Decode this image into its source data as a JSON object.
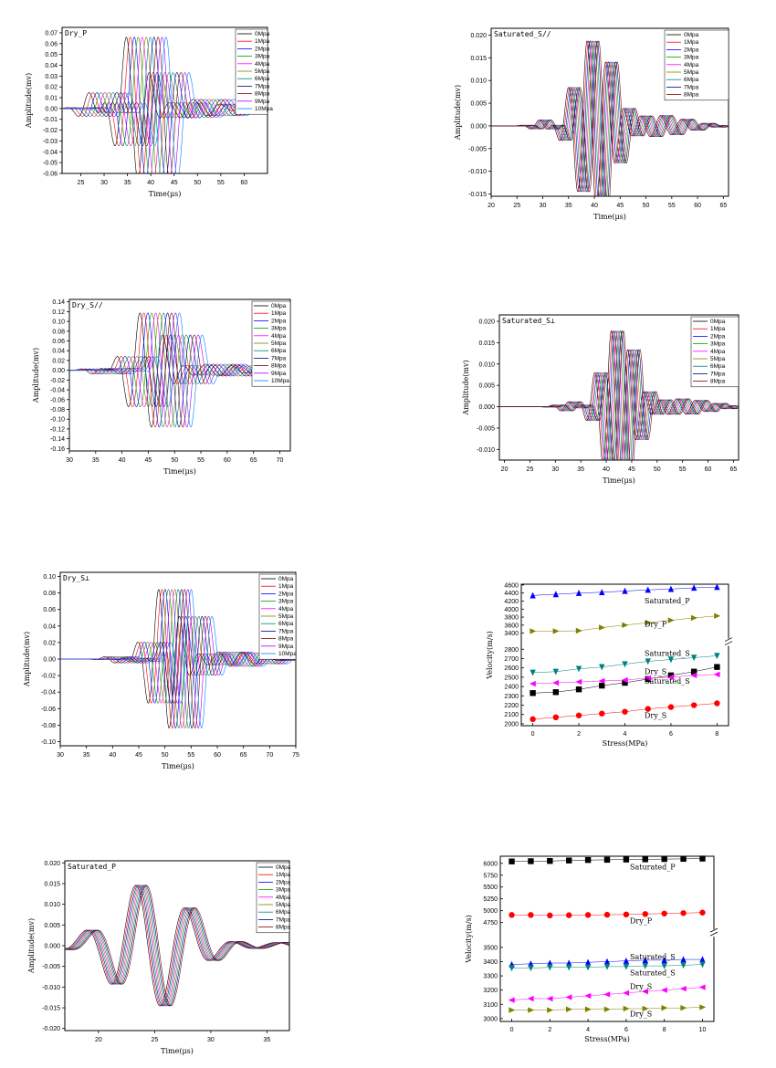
{
  "chart_data": [
    {
      "id": "dry_p",
      "type": "line",
      "title": "Dry_P",
      "xlabel": "Time(μs)",
      "ylabel": "Amplitude(mv)",
      "xlim": [
        21,
        65
      ],
      "ylim": [
        -0.06,
        0.075
      ],
      "xticks": [
        "25",
        "30",
        "35",
        "40",
        "45",
        "50",
        "55",
        "60"
      ],
      "yticks": [
        "-0.06",
        "-0.05",
        "-0.04",
        "-0.03",
        "-0.02",
        "-0.01",
        "0.00",
        "0.01",
        "0.02",
        "0.03",
        "0.04",
        "0.05",
        "0.06",
        "0.07"
      ],
      "legend": [
        "0Mpa",
        "1Mpa",
        "2Mpa",
        "3Mpa",
        "4Mpa",
        "5Mpa",
        "6Mpa",
        "7Mpa",
        "8Mpa",
        "9Mpa",
        "10Mpa"
      ],
      "wave": {
        "t0": 36.0,
        "shift": 0.85,
        "amp": 0.072,
        "f": 0.19,
        "w": 3.2,
        "pre": 0.22,
        "tail": 0.12
      }
    },
    {
      "id": "sat_s_par",
      "type": "line",
      "title": "Saturated_S//",
      "xlabel": "Time(μs)",
      "ylabel": "Amplitude(mv)",
      "xlim": [
        20,
        66
      ],
      "ylim": [
        -0.0155,
        0.0215
      ],
      "xticks": [
        "20",
        "25",
        "30",
        "35",
        "40",
        "45",
        "50",
        "55",
        "60",
        "65"
      ],
      "yticks": [
        "-0.015",
        "-0.010",
        "-0.005",
        "0.000",
        "0.005",
        "0.010",
        "0.015",
        "0.020"
      ],
      "legend": [
        "0Mpa",
        "1Mpa",
        "2Mpa",
        "3Mpa",
        "4Mpa",
        "5Mpa",
        "6Mpa",
        "7Mpa",
        "8Mpa"
      ],
      "wave": {
        "t0": 39.5,
        "shift": 0.28,
        "amp": 0.0195,
        "f": 0.27,
        "w": 3.6,
        "pre": 0.1,
        "tail": 0.12
      }
    },
    {
      "id": "dry_s_par",
      "type": "line",
      "title": "Dry_S//",
      "xlabel": "Time(μs)",
      "ylabel": "Amplitude(mv)",
      "xlim": [
        30,
        72
      ],
      "ylim": [
        -0.165,
        0.145
      ],
      "xticks": [
        "30",
        "35",
        "40",
        "45",
        "50",
        "55",
        "60",
        "65",
        "70"
      ],
      "yticks": [
        "-0.16",
        "-0.14",
        "-0.12",
        "-0.10",
        "-0.08",
        "-0.06",
        "-0.04",
        "-0.02",
        "0.00",
        "0.02",
        "0.04",
        "0.06",
        "0.08",
        "0.10",
        "0.12",
        "0.14"
      ],
      "legend": [
        "0Mpa",
        "1Mpa",
        "2Mpa",
        "3Mpa",
        "4Mpa",
        "5Mpa",
        "6Mpa",
        "7Mpa",
        "8Mpa",
        "9Mpa",
        "10Mpa"
      ],
      "wave": {
        "t0": 44.5,
        "shift": 0.75,
        "amp": 0.125,
        "f": 0.22,
        "w": 3.3,
        "pre": 0.08,
        "tail": 0.1
      }
    },
    {
      "id": "sat_s_perp",
      "type": "line",
      "title": "Saturated_S⊥",
      "xlabel": "Time(μs)",
      "ylabel": "Amplitude(mv)",
      "xlim": [
        19,
        66
      ],
      "ylim": [
        -0.0125,
        0.0215
      ],
      "xticks": [
        "20",
        "25",
        "30",
        "35",
        "40",
        "45",
        "50",
        "55",
        "60",
        "65"
      ],
      "yticks": [
        "-0.010",
        "-0.005",
        "0.000",
        "0.005",
        "0.010",
        "0.015",
        "0.020"
      ],
      "legend": [
        "0Mpa",
        "1Mpa",
        "2Mpa",
        "3Mpa",
        "4Mpa",
        "5Mpa",
        "6Mpa",
        "7Mpa",
        "8Mpa"
      ],
      "wave": {
        "t0": 41.8,
        "shift": 0.3,
        "amp": 0.0185,
        "f": 0.3,
        "w": 3.2,
        "pre": 0.08,
        "tail": 0.1
      }
    },
    {
      "id": "dry_s_perp",
      "type": "line",
      "title": "Dry_S⊥",
      "xlabel": "Time(μs)",
      "ylabel": "Amplitude(mv)",
      "xlim": [
        30,
        75
      ],
      "ylim": [
        -0.105,
        0.105
      ],
      "xticks": [
        "30",
        "35",
        "40",
        "45",
        "50",
        "55",
        "60",
        "65",
        "70",
        "75"
      ],
      "yticks": [
        "-0.10",
        "-0.08",
        "-0.06",
        "-0.04",
        "-0.02",
        "0.00",
        "0.02",
        "0.04",
        "0.06",
        "0.08",
        "0.10"
      ],
      "legend": [
        "0Mpa",
        "1Mpa",
        "2Mpa",
        "3Mpa",
        "4Mpa",
        "5Mpa",
        "6Mpa",
        "7Mpa",
        "8Mpa",
        "9Mpa",
        "10Mpa"
      ],
      "wave": {
        "t0": 49.8,
        "shift": 0.62,
        "amp": 0.09,
        "f": 0.24,
        "w": 3.0,
        "pre": 0.06,
        "tail": 0.1
      }
    },
    {
      "id": "vel_top",
      "type": "scatter",
      "title": "",
      "xlabel": "Stress(MPa)",
      "ylabel": "Velocity(m/s)",
      "xlim": [
        -0.5,
        8.5
      ],
      "xticks": [
        "0",
        "2",
        "4",
        "6",
        "8"
      ],
      "yticks": [
        "2000",
        "2100",
        "2200",
        "2300",
        "2400",
        "2500",
        "2600",
        "2700",
        "2800",
        "3400",
        "3600",
        "3800",
        "4000",
        "4200",
        "4400",
        "4600"
      ],
      "series": [
        {
          "name": "Saturated_P",
          "color": "#0000ff",
          "marker": "tri-up",
          "x": [
            0,
            1,
            2,
            3,
            4,
            5,
            6,
            7,
            8
          ],
          "values": [
            4340,
            4370,
            4400,
            4420,
            4450,
            4480,
            4500,
            4530,
            4550
          ]
        },
        {
          "name": "Dry_P",
          "color": "#808000",
          "marker": "tri-right",
          "x": [
            0,
            1,
            2,
            3,
            4,
            5,
            6,
            7,
            8
          ],
          "values": [
            3450,
            3450,
            3460,
            3540,
            3600,
            3660,
            3720,
            3780,
            3830
          ]
        },
        {
          "name": "Saturated_S//",
          "color": "#008080",
          "marker": "tri-down",
          "x": [
            0,
            1,
            2,
            3,
            4,
            5,
            6,
            7,
            8
          ],
          "values": [
            2550,
            2560,
            2590,
            2610,
            2640,
            2670,
            2690,
            2710,
            2730
          ]
        },
        {
          "name": "Dry_S//",
          "color": "#000000",
          "marker": "square",
          "x": [
            0,
            1,
            2,
            3,
            4,
            5,
            6,
            7,
            8
          ],
          "values": [
            2330,
            2340,
            2370,
            2410,
            2440,
            2480,
            2520,
            2560,
            2610
          ]
        },
        {
          "name": "Saturated_S⊥",
          "color": "#ff00ff",
          "marker": "tri-left",
          "x": [
            0,
            1,
            2,
            3,
            4,
            5,
            6,
            7,
            8
          ],
          "values": [
            2430,
            2440,
            2450,
            2460,
            2470,
            2490,
            2500,
            2520,
            2530
          ]
        },
        {
          "name": "Dry_S⊥",
          "color": "#ff0000",
          "marker": "circle",
          "x": [
            0,
            1,
            2,
            3,
            4,
            5,
            6,
            7,
            8
          ],
          "values": [
            2050,
            2070,
            2090,
            2110,
            2130,
            2160,
            2180,
            2200,
            2220
          ]
        }
      ],
      "labels": [
        "Saturated_P",
        "Dry_P",
        "Saturated_S",
        "Dry_S",
        "Saturated_S",
        "Dry_S"
      ]
    },
    {
      "id": "sat_p",
      "type": "line",
      "title": "Saturated_P",
      "xlabel": "Time(μs)",
      "ylabel": "Amplitude(mv)",
      "xlim": [
        17,
        37
      ],
      "ylim": [
        -0.0205,
        0.0205
      ],
      "xticks": [
        "20",
        "25",
        "30",
        "35"
      ],
      "yticks": [
        "-0.020",
        "-0.015",
        "-0.010",
        "-0.005",
        "0.000",
        "0.005",
        "0.010",
        "0.015",
        "0.020"
      ],
      "legend": [
        "0Mpa",
        "1Mpa",
        "2Mpa",
        "3Mpa",
        "4Mpa",
        "5Mpa",
        "6Mpa",
        "7Mpa",
        "8Mpa"
      ],
      "wave": {
        "t0": 24.4,
        "shift": 0.12,
        "amp": 0.0155,
        "f": 0.22,
        "w": 3.3,
        "pre": 0.0,
        "tail": 0.05
      }
    },
    {
      "id": "vel_bottom",
      "type": "scatter",
      "title": "",
      "xlabel": "Stress(MPa)",
      "ylabel": "Velocity(m/s)",
      "xlim": [
        -0.6,
        10.6
      ],
      "xticks": [
        "0",
        "2",
        "4",
        "6",
        "8",
        "10"
      ],
      "yticks": [
        "3000",
        "3100",
        "3200",
        "3300",
        "3400",
        "3500",
        "4750",
        "5000",
        "5250",
        "5500",
        "5750",
        "6000"
      ],
      "series": [
        {
          "name": "Saturated_P",
          "color": "#000000",
          "marker": "square",
          "x": [
            0,
            1,
            2,
            3,
            4,
            5,
            6,
            7,
            8,
            9,
            10
          ],
          "values": [
            6040,
            6045,
            6050,
            6060,
            6070,
            6075,
            6080,
            6085,
            6090,
            6095,
            6100
          ]
        },
        {
          "name": "Dry_P",
          "color": "#ff0000",
          "marker": "circle",
          "x": [
            0,
            1,
            2,
            3,
            4,
            5,
            6,
            7,
            8,
            9,
            10
          ],
          "values": [
            4910,
            4910,
            4900,
            4905,
            4910,
            4915,
            4920,
            4930,
            4940,
            4950,
            4960
          ]
        },
        {
          "name": "Saturated_S//",
          "color": "#0000ff",
          "marker": "tri-up",
          "x": [
            0,
            1,
            2,
            3,
            4,
            5,
            6,
            7,
            8,
            9,
            10
          ],
          "values": [
            3380,
            3385,
            3390,
            3390,
            3395,
            3400,
            3405,
            3410,
            3410,
            3415,
            3415
          ]
        },
        {
          "name": "Saturated_S⊥",
          "color": "#008080",
          "marker": "tri-down",
          "x": [
            0,
            1,
            2,
            3,
            4,
            5,
            6,
            7,
            8,
            9,
            10
          ],
          "values": [
            3355,
            3355,
            3360,
            3360,
            3360,
            3365,
            3365,
            3370,
            3370,
            3375,
            3380
          ]
        },
        {
          "name": "Dry_S//",
          "color": "#ff00ff",
          "marker": "tri-left",
          "x": [
            0,
            1,
            2,
            3,
            4,
            5,
            6,
            7,
            8,
            9,
            10
          ],
          "values": [
            3130,
            3140,
            3140,
            3150,
            3160,
            3170,
            3180,
            3190,
            3200,
            3210,
            3220
          ]
        },
        {
          "name": "Dry_S⊥",
          "color": "#808000",
          "marker": "tri-right",
          "x": [
            0,
            1,
            2,
            3,
            4,
            5,
            6,
            7,
            8,
            9,
            10
          ],
          "values": [
            3060,
            3060,
            3060,
            3065,
            3065,
            3065,
            3070,
            3070,
            3075,
            3075,
            3080
          ]
        }
      ],
      "labels": [
        "Saturated_P",
        "Dry_P",
        "Saturated_S",
        "Saturated_S",
        "Dry_S",
        "Dry_S"
      ]
    }
  ]
}
